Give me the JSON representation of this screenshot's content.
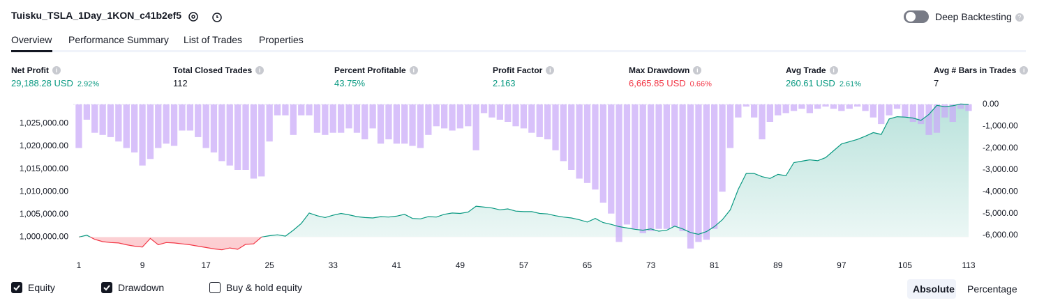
{
  "header": {
    "title": "Tuisku_TSLA_1Day_1KON_c41b2ef5",
    "deep_backtesting": "Deep Backtesting"
  },
  "tabs": [
    "Overview",
    "Performance Summary",
    "List of Trades",
    "Properties"
  ],
  "metrics": [
    {
      "label": "Net Profit",
      "value": "29,188.28 USD",
      "percent": "2.92%"
    },
    {
      "label": "Total Closed Trades",
      "value": "112"
    },
    {
      "label": "Percent Profitable",
      "value": "43.75%"
    },
    {
      "label": "Profit Factor",
      "value": "2.163"
    },
    {
      "label": "Max Drawdown",
      "value": "6,665.85 USD",
      "percent": "0.66%"
    },
    {
      "label": "Avg Trade",
      "value": "260.61 USD",
      "percent": "2.61%"
    },
    {
      "label": "Avg # Bars in Trades",
      "value": "7"
    }
  ],
  "chart_data": {
    "type": "line",
    "x_start": 1,
    "xlim": [
      0.3,
      113.35
    ],
    "xticks": [
      1,
      9,
      17,
      25,
      33,
      41,
      49,
      57,
      65,
      73,
      81,
      89,
      97,
      105,
      113
    ],
    "ylim": [
      997000,
      1029500
    ],
    "yticks": [
      {
        "value": 1000000,
        "label": "1,000,000.00"
      },
      {
        "value": 1005000,
        "label": "1,005,000.00"
      },
      {
        "value": 1010000,
        "label": "1,010,000.00"
      },
      {
        "value": 1015000,
        "label": "1,015,000.00"
      },
      {
        "value": 1020000,
        "label": "1,020,000.00"
      },
      {
        "value": 1025000,
        "label": "1,025,000.00"
      }
    ],
    "y2lim": [
      -6700,
      60
    ],
    "y2ticks": [
      {
        "value": 0,
        "label": "0.00"
      },
      {
        "value": -1000,
        "label": "-1,000.00"
      },
      {
        "value": -2000,
        "label": "-2,000.00"
      },
      {
        "value": -3000,
        "label": "-3,000.00"
      },
      {
        "value": -4000,
        "label": "-4,000.00"
      },
      {
        "value": -5000,
        "label": "-5,000.00"
      },
      {
        "value": -6000,
        "label": "-6,000.00"
      }
    ],
    "series": [
      {
        "name": "Equity",
        "color": "#089981",
        "negative_color": "#f23645",
        "baseline": 1000000,
        "values": [
          1000000,
          1000400,
          999500,
          999000,
          998800,
          998700,
          998300,
          998000,
          997800,
          999700,
          998300,
          998800,
          998700,
          998500,
          998300,
          998000,
          997700,
          997400,
          997200,
          997600,
          997300,
          998400,
          998500,
          1000000,
          1000300,
          1000500,
          1000200,
          1001500,
          1003000,
          1005300,
          1004700,
          1004300,
          1004800,
          1005200,
          1004900,
          1004500,
          1004300,
          1004200,
          1004500,
          1004400,
          1004600,
          1005000,
          1004100,
          1004000,
          1004500,
          1004400,
          1005000,
          1005300,
          1005200,
          1005500,
          1006800,
          1006600,
          1006400,
          1006000,
          1006200,
          1005700,
          1005600,
          1005600,
          1005200,
          1005100,
          1004700,
          1004400,
          1004200,
          1003800,
          1003300,
          1004100,
          1003200,
          1002800,
          1002300,
          1002000,
          1001700,
          1001500,
          1001800,
          1001300,
          1001500,
          1002400,
          1001800,
          1001000,
          1000600,
          1001200,
          1002300,
          1003800,
          1006000,
          1010500,
          1014000,
          1014000,
          1013300,
          1012900,
          1013800,
          1013500,
          1016400,
          1016700,
          1017000,
          1016800,
          1017500,
          1019000,
          1020500,
          1021000,
          1021500,
          1022200,
          1023000,
          1022600,
          1026000,
          1026500,
          1026400,
          1026200,
          1025700,
          1027000,
          1029000,
          1028700,
          1028900,
          1029300,
          1029188
        ]
      },
      {
        "name": "Drawdown",
        "color": "#c9a9f8",
        "axis": "y2",
        "values": [
          -2000,
          -700,
          -1300,
          -1400,
          -1500,
          -1700,
          -2000,
          -2200,
          -2800,
          -2500,
          -2000,
          -1800,
          -1900,
          -1200,
          -1200,
          -1500,
          -2000,
          -2200,
          -2600,
          -2800,
          -3000,
          -3000,
          -3400,
          -3300,
          -1700,
          -500,
          -500,
          -1400,
          -500,
          -500,
          -1300,
          -1400,
          -1300,
          -1300,
          -1100,
          -1300,
          -1600,
          -1100,
          -1800,
          -1600,
          -1800,
          -1800,
          -1900,
          -2000,
          -1400,
          -1000,
          -1100,
          -1200,
          -1100,
          -1000,
          -2100,
          -400,
          -600,
          -700,
          -800,
          -1000,
          -1100,
          -1300,
          -1500,
          -1600,
          -2100,
          -2600,
          -3000,
          -3400,
          -3600,
          -3900,
          -4500,
          -5000,
          -6300,
          -5500,
          -5700,
          -5900,
          -5800,
          -5700,
          -5700,
          -5600,
          -5800,
          -6600,
          -6300,
          -6200,
          -5700,
          -4000,
          -2000,
          -600,
          -100,
          -600,
          -1600,
          -800,
          -500,
          -400,
          -300,
          -200,
          -400,
          -200,
          -100,
          -200,
          -300,
          -200,
          -100,
          -300,
          -600,
          -900,
          -500,
          -200,
          -600,
          -800,
          -900,
          -1400,
          -1300,
          -600,
          -800,
          -200,
          -300
        ]
      }
    ],
    "extra_toggle": "Buy & hold equity"
  },
  "views": [
    "Absolute",
    "Percentage"
  ]
}
